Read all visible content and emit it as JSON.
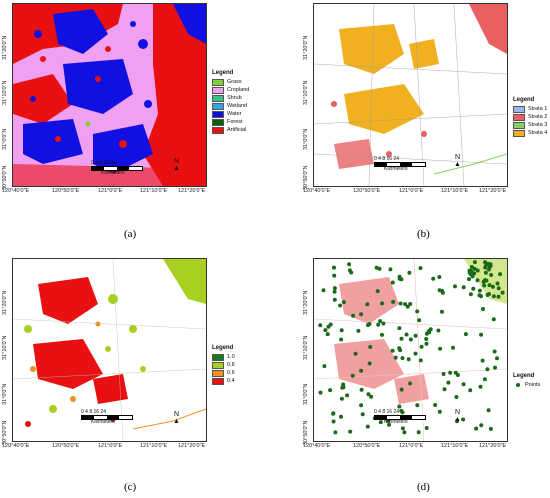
{
  "panels": {
    "a": {
      "caption": "(a)",
      "legend_title": "Legend",
      "legend": [
        {
          "label": "Grass",
          "color": "#7fd13b"
        },
        {
          "label": "Cropland",
          "color": "#f0a0f0"
        },
        {
          "label": "Shrub",
          "color": "#3cc08a"
        },
        {
          "label": "Wetland",
          "color": "#3aa0e8"
        },
        {
          "label": "Water",
          "color": "#1010e0"
        },
        {
          "label": "Forest",
          "color": "#0a5a12"
        },
        {
          "label": "Artificial",
          "color": "#e81010"
        }
      ]
    },
    "b": {
      "caption": "(b)",
      "legend_title": "Legend",
      "legend": [
        {
          "label": "Strata 1",
          "color": "#9ab8e8"
        },
        {
          "label": "Strata 2",
          "color": "#e86060"
        },
        {
          "label": "Strata 3",
          "color": "#8ad060"
        },
        {
          "label": "Strata 4",
          "color": "#f0b020"
        }
      ]
    },
    "c": {
      "caption": "(c)",
      "legend_title": "Legend",
      "legend": [
        {
          "label": "1.0",
          "color": "#1a7a1a"
        },
        {
          "label": "0.8",
          "color": "#a8d020"
        },
        {
          "label": "0.6",
          "color": "#f09020"
        },
        {
          "label": "0.4",
          "color": "#e81010"
        }
      ]
    },
    "d": {
      "caption": "(d)",
      "legend_title": "Legend",
      "legend": [
        {
          "label": "Points",
          "color": "#1a6a1a"
        }
      ]
    }
  },
  "x_ticks": [
    "120°40'0\"E",
    "120°50'0\"E",
    "121°0'0\"E",
    "121°10'0\"E",
    "121°20'0\"E"
  ],
  "y_ticks": [
    "31°20'0\"N",
    "31°10'0\"N",
    "31°0'0\"N",
    "30°50'0\"N"
  ],
  "scale": {
    "numbers": "0 4 8    16    24",
    "unit": "Kilometers"
  },
  "north_label": "N",
  "colors": {
    "water": "#1010e0",
    "artificial": "#e81010",
    "cropland": "#f0a0f0",
    "strata4": "#f0b020",
    "strata2": "#e86060",
    "point": "#1a6a1a"
  }
}
